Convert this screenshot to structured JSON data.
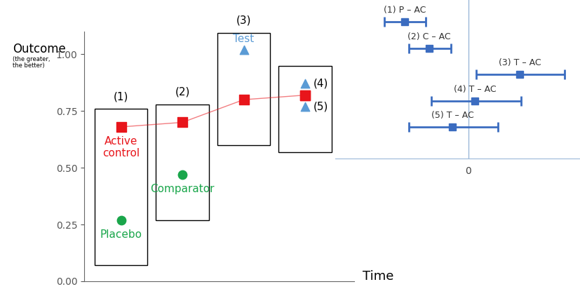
{
  "chart_data": [
    {
      "type": "scatter",
      "y_label": "Outcome",
      "y_label_note": "(the greater,\nthe better)",
      "x_label": "Time",
      "xlim": [
        0.4,
        4.8
      ],
      "ylim": [
        0,
        1.1
      ],
      "yticks": [
        {
          "value": 0,
          "label": "0.00"
        },
        {
          "value": 0.25,
          "label": "0.25"
        },
        {
          "value": 0.5,
          "label": "0.50"
        },
        {
          "value": 0.75,
          "label": "0.75"
        },
        {
          "value": 1,
          "label": "1.00"
        }
      ],
      "tick_labels": "y",
      "grid": false,
      "active_control": {
        "name": "Active\ncontrol",
        "color": "#e8151b",
        "marker": "square",
        "line_style": "solid"
      },
      "arms": [
        {
          "name": "Placebo",
          "color": "#1aa64b",
          "marker": "circle"
        },
        {
          "name": "Comparator",
          "color": "#1aa64b",
          "marker": "circle"
        },
        {
          "name": "Test",
          "color": "#5b9bd5",
          "marker": "triangle"
        }
      ],
      "trials": [
        {
          "label": "(1)",
          "time": 1,
          "control_value": 0.68,
          "arm": "Placebo",
          "value": 0.27
        },
        {
          "label": "(2)",
          "time": 2,
          "control_value": 0.7,
          "arm": "Comparator",
          "value": 0.47
        },
        {
          "label": "(3)",
          "time": 3,
          "control_value": 0.8,
          "arm": "Test",
          "value": 1.02
        },
        {
          "label": "(4)",
          "time": 4,
          "control_value": 0.82,
          "arm": "Test",
          "value": 0.87
        },
        {
          "label": "(5)",
          "time": 4,
          "control_value": 0.82,
          "arm": "Test",
          "value": 0.77
        }
      ]
    },
    {
      "type": "forest",
      "categories": [
        "(1) P – AC",
        "(2) C – AC",
        "(3) T – AC",
        "(4) T – AC",
        "(5) T – AC"
      ],
      "values": [
        -0.91,
        -0.56,
        0.73,
        0.09,
        -0.23
      ],
      "ci_lower": [
        -1.2,
        -0.85,
        0.11,
        -0.53,
        -0.85
      ],
      "ci_upper": [
        -0.61,
        -0.25,
        1.37,
        0.75,
        0.42
      ],
      "xlim": [
        -1.9,
        1.6
      ],
      "xticks": [
        0
      ],
      "tick_labels": "x",
      "grid": true,
      "color": "#3b6cc0",
      "marker": "square"
    }
  ]
}
